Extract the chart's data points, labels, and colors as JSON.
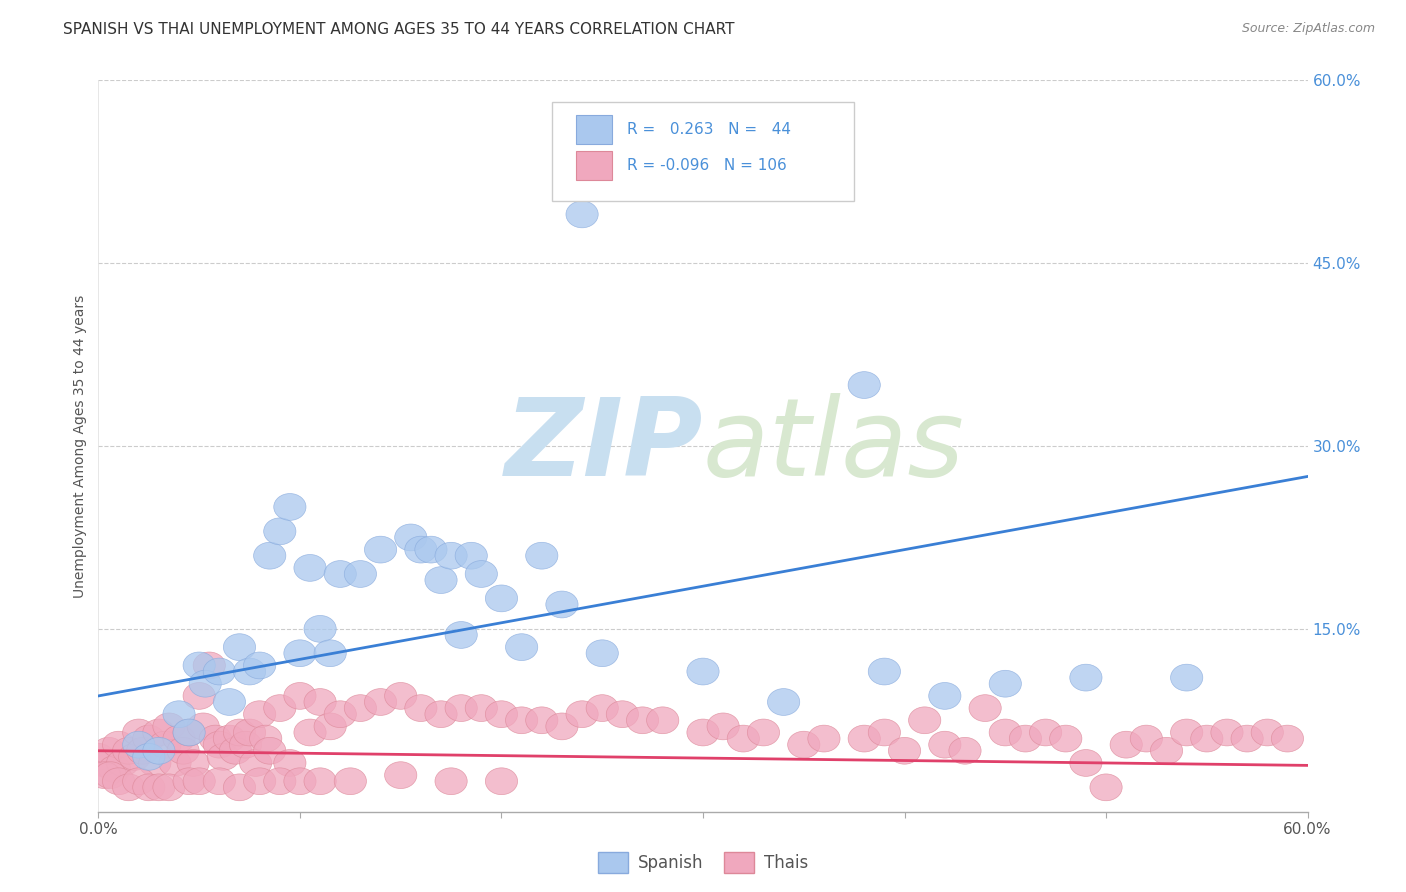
{
  "title": "SPANISH VS THAI UNEMPLOYMENT AMONG AGES 35 TO 44 YEARS CORRELATION CHART",
  "source": "Source: ZipAtlas.com",
  "ylabel": "Unemployment Among Ages 35 to 44 years",
  "xlim": [
    0.0,
    0.6
  ],
  "ylim": [
    -0.01,
    0.62
  ],
  "plot_ylim": [
    0.0,
    0.6
  ],
  "xticks": [
    0.0,
    0.1,
    0.2,
    0.3,
    0.4,
    0.5,
    0.6
  ],
  "xtick_labels": [
    "0.0%",
    "",
    "",
    "",
    "",
    "",
    "60.0%"
  ],
  "ytick_labels_right": [
    "60.0%",
    "45.0%",
    "30.0%",
    "15.0%"
  ],
  "yticks_right": [
    0.6,
    0.45,
    0.3,
    0.15
  ],
  "spanish_R": 0.263,
  "spanish_N": 44,
  "thai_R": -0.096,
  "thai_N": 106,
  "spanish_color": "#aac8ee",
  "spanish_edge_color": "#88aadd",
  "thai_color": "#f0a8be",
  "thai_edge_color": "#dd8899",
  "spanish_line_color": "#3a7fd5",
  "thai_line_color": "#e0406a",
  "watermark_zip": "ZIP",
  "watermark_atlas": "atlas",
  "watermark_color": "#ddeeff",
  "background_color": "#ffffff",
  "grid_color": "#cccccc",
  "title_color": "#333333",
  "label_color": "#555555",
  "right_tick_color": "#4a90d9",
  "legend_box_color": "#f0f4f8",
  "legend_edge_color": "#cccccc",
  "spanish_line_start_y": 0.095,
  "spanish_line_end_y": 0.275,
  "thai_line_start_y": 0.05,
  "thai_line_end_y": 0.038,
  "spanish_x": [
    0.02,
    0.025,
    0.03,
    0.04,
    0.045,
    0.05,
    0.053,
    0.06,
    0.065,
    0.07,
    0.075,
    0.08,
    0.085,
    0.09,
    0.095,
    0.1,
    0.105,
    0.11,
    0.115,
    0.12,
    0.13,
    0.14,
    0.155,
    0.16,
    0.165,
    0.17,
    0.175,
    0.18,
    0.185,
    0.19,
    0.2,
    0.21,
    0.22,
    0.23,
    0.24,
    0.25,
    0.3,
    0.34,
    0.38,
    0.39,
    0.42,
    0.45,
    0.49,
    0.54
  ],
  "spanish_y": [
    0.055,
    0.045,
    0.05,
    0.08,
    0.065,
    0.12,
    0.105,
    0.115,
    0.09,
    0.135,
    0.115,
    0.12,
    0.21,
    0.23,
    0.25,
    0.13,
    0.2,
    0.15,
    0.13,
    0.195,
    0.195,
    0.215,
    0.225,
    0.215,
    0.215,
    0.19,
    0.21,
    0.145,
    0.21,
    0.195,
    0.175,
    0.135,
    0.21,
    0.17,
    0.49,
    0.13,
    0.115,
    0.09,
    0.35,
    0.115,
    0.095,
    0.105,
    0.11,
    0.11
  ],
  "thai_x": [
    0.0,
    0.002,
    0.005,
    0.008,
    0.01,
    0.012,
    0.015,
    0.018,
    0.02,
    0.022,
    0.025,
    0.028,
    0.03,
    0.033,
    0.035,
    0.038,
    0.04,
    0.042,
    0.045,
    0.047,
    0.05,
    0.052,
    0.055,
    0.058,
    0.06,
    0.062,
    0.065,
    0.068,
    0.07,
    0.073,
    0.075,
    0.078,
    0.08,
    0.083,
    0.085,
    0.09,
    0.095,
    0.1,
    0.105,
    0.11,
    0.115,
    0.12,
    0.13,
    0.14,
    0.15,
    0.16,
    0.17,
    0.18,
    0.19,
    0.2,
    0.21,
    0.22,
    0.23,
    0.24,
    0.25,
    0.26,
    0.27,
    0.28,
    0.3,
    0.31,
    0.32,
    0.33,
    0.35,
    0.36,
    0.38,
    0.39,
    0.4,
    0.41,
    0.42,
    0.43,
    0.44,
    0.45,
    0.46,
    0.47,
    0.48,
    0.49,
    0.5,
    0.51,
    0.52,
    0.53,
    0.54,
    0.55,
    0.56,
    0.57,
    0.58,
    0.59,
    0.003,
    0.006,
    0.01,
    0.015,
    0.02,
    0.025,
    0.03,
    0.035,
    0.045,
    0.05,
    0.06,
    0.07,
    0.08,
    0.09,
    0.1,
    0.11,
    0.125,
    0.15,
    0.175,
    0.2
  ],
  "thai_y": [
    0.045,
    0.04,
    0.05,
    0.035,
    0.055,
    0.04,
    0.05,
    0.045,
    0.065,
    0.05,
    0.06,
    0.04,
    0.065,
    0.055,
    0.07,
    0.04,
    0.06,
    0.05,
    0.065,
    0.04,
    0.095,
    0.07,
    0.12,
    0.06,
    0.055,
    0.045,
    0.06,
    0.05,
    0.065,
    0.055,
    0.065,
    0.04,
    0.08,
    0.06,
    0.05,
    0.085,
    0.04,
    0.095,
    0.065,
    0.09,
    0.07,
    0.08,
    0.085,
    0.09,
    0.095,
    0.085,
    0.08,
    0.085,
    0.085,
    0.08,
    0.075,
    0.075,
    0.07,
    0.08,
    0.085,
    0.08,
    0.075,
    0.075,
    0.065,
    0.07,
    0.06,
    0.065,
    0.055,
    0.06,
    0.06,
    0.065,
    0.05,
    0.075,
    0.055,
    0.05,
    0.085,
    0.065,
    0.06,
    0.065,
    0.06,
    0.04,
    0.02,
    0.055,
    0.06,
    0.05,
    0.065,
    0.06,
    0.065,
    0.06,
    0.065,
    0.06,
    0.03,
    0.03,
    0.025,
    0.02,
    0.025,
    0.02,
    0.02,
    0.02,
    0.025,
    0.025,
    0.025,
    0.02,
    0.025,
    0.025,
    0.025,
    0.025,
    0.025,
    0.03,
    0.025,
    0.025
  ]
}
